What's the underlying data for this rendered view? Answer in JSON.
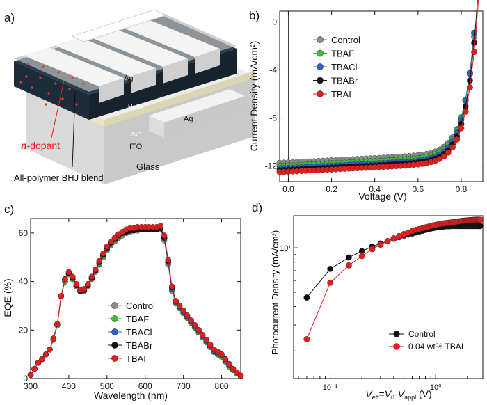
{
  "panel_letters": {
    "a": "a)",
    "b": "b)",
    "c": "c)",
    "d": "d)"
  },
  "device": {
    "labels": {
      "ag_top": "Ag",
      "moox": "MoOx",
      "zno": "ZnO",
      "ag_side": "Ag",
      "ito": "ITO",
      "glass": "Glass",
      "n_dopant_prefix": "n",
      "n_dopant_suffix": "-dopant",
      "blend": "All-polymer BHJ blend"
    },
    "colors": {
      "electrode": "#e8e8e8",
      "active": "#1c2c3a",
      "dopant": "#e23a2a",
      "ito": "#e9e4c8",
      "glass": "#d8d8d8"
    }
  },
  "chart_data": [
    {
      "id": "b",
      "type": "line",
      "title": "",
      "xlabel": "Voltage (V)",
      "ylabel": "Current Density (mA/cm²)",
      "xlim": [
        -0.04,
        0.9
      ],
      "ylim": [
        -13.3,
        0.9
      ],
      "xticks": [
        0.0,
        0.2,
        0.4,
        0.6,
        0.8
      ],
      "xtick_labels": [
        "0.0",
        "0.2",
        "0.4",
        "0.6",
        "0.8"
      ],
      "yticks": [
        0,
        -4,
        -8,
        -12
      ],
      "ytick_labels": [
        "0",
        "-4",
        "-8",
        "-12"
      ],
      "legend": "top-left",
      "series": [
        {
          "name": "Control",
          "color": "#8c8c8c",
          "jsc": -11.75,
          "voc": 0.87
        },
        {
          "name": "TBAF",
          "color": "#3bbf3b",
          "jsc": -12.0,
          "voc": 0.868
        },
        {
          "name": "TBACl",
          "color": "#3060c8",
          "jsc": -12.2,
          "voc": 0.868
        },
        {
          "name": "TBABr",
          "color": "#111111",
          "jsc": -12.35,
          "voc": 0.872
        },
        {
          "name": "TBAI",
          "color": "#e02020",
          "jsc": -12.5,
          "voc": 0.876
        }
      ]
    },
    {
      "id": "c",
      "type": "line",
      "title": "",
      "xlabel": "Wavelength (nm)",
      "ylabel": "EQE (%)",
      "xlim": [
        300,
        850
      ],
      "ylim": [
        0,
        66
      ],
      "xticks": [
        300,
        400,
        500,
        600,
        700,
        800
      ],
      "xtick_labels": [
        "300",
        "400",
        "500",
        "600",
        "700",
        "800"
      ],
      "yticks": [
        0,
        20,
        40,
        60
      ],
      "ytick_labels": [
        "0",
        "20",
        "40",
        "60"
      ],
      "legend": "bottom-center",
      "x": [
        300,
        310,
        320,
        330,
        340,
        350,
        360,
        370,
        380,
        390,
        400,
        410,
        420,
        430,
        440,
        450,
        460,
        470,
        480,
        490,
        500,
        510,
        520,
        530,
        540,
        550,
        560,
        570,
        580,
        590,
        600,
        610,
        620,
        630,
        640,
        650,
        660,
        670,
        680,
        690,
        700,
        710,
        720,
        730,
        740,
        750,
        760,
        770,
        780,
        790,
        800,
        810,
        820,
        830,
        840,
        850
      ],
      "series": [
        {
          "name": "Control",
          "color": "#8c8c8c",
          "values": [
            1.5,
            4,
            6.5,
            8,
            10,
            12,
            16,
            22,
            34,
            40,
            43,
            41,
            38,
            36,
            36,
            38,
            41,
            44,
            47,
            50,
            53,
            55,
            56.5,
            58,
            59,
            60,
            60.5,
            61,
            61,
            61.5,
            61.5,
            61.5,
            61.5,
            61.5,
            61.5,
            57,
            47,
            36,
            31,
            29,
            27,
            25,
            23,
            21,
            19,
            17,
            15,
            13,
            11,
            10,
            9,
            7,
            5,
            3.5,
            2,
            1
          ]
        },
        {
          "name": "TBAF",
          "color": "#3bbf3b",
          "values": [
            1.5,
            4,
            6.5,
            8,
            10,
            12,
            16,
            22,
            34,
            40,
            43.5,
            41,
            38.5,
            36,
            36.5,
            38.5,
            41.5,
            44.5,
            47.5,
            50.5,
            53.5,
            55.5,
            57,
            58.5,
            59.5,
            60.5,
            61,
            61.5,
            61.5,
            62,
            62,
            62,
            62,
            62,
            62,
            58,
            48,
            37,
            31,
            29,
            27,
            25,
            23,
            21,
            19,
            17,
            15,
            13,
            11,
            10,
            9,
            7,
            5,
            3.5,
            2,
            1
          ]
        },
        {
          "name": "TBACl",
          "color": "#3060c8",
          "values": [
            1.5,
            4,
            6.5,
            8,
            10,
            12,
            16.5,
            22.5,
            34,
            41,
            43.5,
            41.5,
            38.5,
            36,
            36.5,
            38.5,
            41.5,
            44.5,
            48,
            51,
            54,
            56,
            57.5,
            59,
            60,
            60.5,
            61,
            61.5,
            62,
            62,
            62,
            62,
            62,
            62,
            62.5,
            58,
            48,
            37,
            31.5,
            29.5,
            27.5,
            25.5,
            23.5,
            21.5,
            19.5,
            17.5,
            15.5,
            13.5,
            11.5,
            10.5,
            9.5,
            7.5,
            5.5,
            4,
            2.5,
            1.2
          ]
        },
        {
          "name": "TBABr",
          "color": "#111111",
          "values": [
            1.5,
            4,
            6.5,
            8,
            10,
            12,
            16.5,
            22.5,
            34,
            41,
            43.5,
            41.5,
            38.5,
            36,
            36.5,
            38.5,
            41.5,
            44.5,
            48,
            51,
            54,
            56,
            57.5,
            59,
            60,
            60.5,
            61,
            61,
            61.5,
            61.5,
            61.5,
            61.5,
            61.5,
            61.5,
            62,
            58,
            48.5,
            37.5,
            32,
            30,
            28,
            26,
            24,
            22,
            20,
            18,
            16,
            14,
            12,
            11,
            10,
            8,
            6,
            4,
            2.5,
            1.2
          ]
        },
        {
          "name": "TBAI",
          "color": "#e02020",
          "values": [
            1.5,
            4,
            6.5,
            8,
            10,
            12,
            16.5,
            22.5,
            34,
            41,
            44,
            42,
            39,
            36.5,
            37,
            39,
            42,
            45,
            48.5,
            51.5,
            54.5,
            56.5,
            58,
            59.5,
            60.5,
            61.5,
            62,
            62,
            62.5,
            62.5,
            62.5,
            62.5,
            62.5,
            62.5,
            63,
            59,
            49,
            38,
            32,
            30,
            28,
            26,
            24,
            22,
            20,
            18,
            16,
            14,
            12,
            11,
            10,
            8,
            6,
            4,
            2.5,
            1.2
          ]
        }
      ]
    },
    {
      "id": "d",
      "type": "scatter",
      "title": "",
      "xlabel_parts": {
        "v": "V",
        "eff": "eff",
        "eq": "=",
        "v0": "V",
        "zero": "0",
        "minus": "-",
        "va": "V",
        "appl": "appl",
        "unit": " (V)"
      },
      "ylabel": "Photocurrent Density (mA/cm²)",
      "xscale": "log",
      "yscale": "log",
      "xlim": [
        0.045,
        2.8
      ],
      "ylim": [
        1.3,
        16.5
      ],
      "xticks": [
        0.1,
        1.0
      ],
      "xtick_labels": [
        "10⁻¹",
        "10⁰"
      ],
      "yticks": [
        10
      ],
      "ytick_labels": [
        "10¹"
      ],
      "legend": "bottom-right",
      "x": [
        0.06,
        0.1,
        0.15,
        0.2,
        0.25,
        0.3,
        0.35,
        0.4,
        0.45,
        0.5,
        0.55,
        0.6,
        0.65,
        0.7,
        0.75,
        0.8,
        0.85,
        0.9,
        0.95,
        1.0,
        1.05,
        1.1,
        1.15,
        1.2,
        1.25,
        1.3,
        1.35,
        1.4,
        1.45,
        1.5,
        1.55,
        1.6,
        1.65,
        1.7,
        1.75,
        1.8,
        1.85,
        1.9,
        1.95,
        2.0,
        2.05,
        2.1,
        2.15,
        2.2,
        2.25,
        2.3,
        2.35,
        2.4,
        2.45,
        2.5,
        2.55,
        2.6,
        2.65
      ],
      "series": [
        {
          "name": "Control",
          "color": "#111111",
          "values": [
            4.6,
            7.2,
            8.6,
            9.5,
            10.2,
            10.7,
            11.1,
            11.5,
            11.8,
            12.1,
            12.3,
            12.5,
            12.7,
            12.9,
            13.05,
            13.2,
            13.35,
            13.5,
            13.6,
            13.7,
            13.8,
            13.85,
            13.9,
            13.95,
            14.0,
            14.0,
            14.0,
            14.05,
            14.05,
            14.05,
            14.05,
            14.05,
            14.05,
            14.05,
            14.05,
            14.05,
            14.05,
            14.05,
            14.05,
            14.05,
            14.05,
            14.05,
            14.05,
            14.05,
            14.05,
            14.05,
            14.05,
            14.05,
            14.05,
            14.05,
            14.05,
            14.05,
            14.05
          ]
        },
        {
          "name": "0.04 wt% TBAI",
          "color": "#e02020",
          "values": [
            2.4,
            5.8,
            7.6,
            8.8,
            9.8,
            10.5,
            11.1,
            11.6,
            12.0,
            12.4,
            12.7,
            13.0,
            13.2,
            13.4,
            13.6,
            13.75,
            13.9,
            14.05,
            14.2,
            14.3,
            14.4,
            14.5,
            14.6,
            14.65,
            14.7,
            14.75,
            14.8,
            14.85,
            14.9,
            14.95,
            15.0,
            15.05,
            15.1,
            15.15,
            15.2,
            15.25,
            15.25,
            15.3,
            15.3,
            15.35,
            15.35,
            15.4,
            15.4,
            15.4,
            15.45,
            15.45,
            15.45,
            15.5,
            15.5,
            15.5,
            15.5,
            15.5,
            15.5
          ]
        }
      ]
    }
  ]
}
